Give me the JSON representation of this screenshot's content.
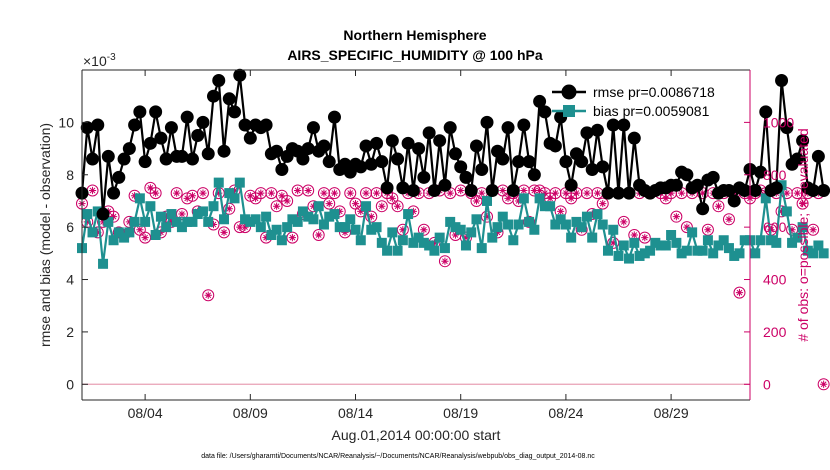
{
  "chart_data": {
    "type": "line",
    "title": "Northern Hemisphere",
    "subtitle": "AIRS_SPECIFIC_HUMIDITY @ 100 hPa",
    "xlabel": "Aug.01,2014 00:00:00 start",
    "ylabel_left": "rmse and bias (model - observation)",
    "ylabel_right": "# of obs: o=possible; ∗=evaluated",
    "y_exponent_label": "×10",
    "y_exponent_power": "-3",
    "footnote": "data file: /Users/gharamti/Documents/NCAR/Reanalysis/~/Documents/NCAR/Reanalysis/webpub/obs_diag_output_2014-08.nc",
    "xlim": [
      1,
      32.75
    ],
    "ylim": [
      -0.6,
      12.0
    ],
    "ylim_right": [
      -60,
      1200
    ],
    "x_ticks": [
      4,
      9,
      14,
      19,
      24,
      29
    ],
    "x_tick_labels": [
      "08/04",
      "08/09",
      "08/14",
      "08/19",
      "08/24",
      "08/29"
    ],
    "y_ticks": [
      0,
      2,
      4,
      6,
      8,
      10
    ],
    "y_tick_labels": [
      "0",
      "2",
      "4",
      "6",
      "8",
      "10"
    ],
    "y_ticks_right": [
      0,
      200,
      400,
      600,
      800,
      1000
    ],
    "y_tick_labels_right": [
      "0",
      "200",
      "400",
      "600",
      "800",
      "1000"
    ],
    "x_start": 1.0,
    "x_step": 0.25,
    "legend": {
      "location": "top-right",
      "entries": [
        "rmse pr=0.0086718",
        "bias pr=0.0059081"
      ]
    },
    "colors": {
      "rmse": "#000000",
      "bias": "#1e9090",
      "obs": "#cc0066",
      "zero_line": "#e8a0b4",
      "axis": "#262626",
      "right_axis": "#cc0066"
    },
    "series": [
      {
        "name": "rmse pr=0.0086718",
        "values": [
          7.3,
          9.8,
          8.6,
          9.9,
          6.5,
          8.7,
          7.3,
          7.9,
          8.6,
          9.0,
          9.9,
          10.4,
          8.5,
          9.2,
          10.4,
          9.4,
          8.6,
          9.8,
          8.7,
          8.7,
          10.2,
          8.6,
          9.5,
          10.0,
          8.8,
          11.0,
          11.6,
          8.9,
          10.9,
          10.4,
          11.8,
          9.9,
          9.4,
          9.9,
          9.8,
          9.9,
          8.8,
          8.9,
          8.2,
          8.7,
          9.0,
          8.9,
          8.6,
          9.0,
          9.8,
          8.9,
          9.1,
          8.5,
          10.2,
          8.2,
          8.4,
          8.1,
          8.4,
          8.3,
          9.1,
          8.4,
          9.2,
          8.5,
          7.5,
          9.3,
          8.6,
          7.5,
          9.2,
          7.4,
          9.0,
          7.9,
          9.6,
          7.4,
          9.3,
          7.6,
          9.8,
          8.8,
          8.3,
          7.9,
          7.4,
          9.1,
          8.2,
          10.0,
          7.4,
          8.9,
          8.6,
          9.8,
          7.4,
          8.5,
          9.9,
          8.5,
          8.0,
          10.8,
          10.4,
          9.2,
          9.1,
          10.2,
          8.5,
          7.6,
          8.8,
          8.5,
          9.6,
          8.2,
          9.7,
          8.3,
          7.3,
          9.9,
          7.3,
          9.9,
          7.3,
          9.4,
          7.6,
          7.4,
          7.3,
          7.4,
          7.5,
          7.5,
          7.6,
          7.6,
          8.1,
          8.0,
          7.5,
          7.6,
          6.7,
          7.8,
          7.9,
          7.3,
          7.4,
          7.4,
          7.0,
          7.5,
          7.4,
          8.2,
          7.4,
          8.1,
          10.4,
          7.4,
          7.5,
          11.6,
          9.8,
          8.4,
          8.6,
          9.3,
          7.5,
          7.4,
          8.7,
          7.4
        ],
        "marker": "filled-circle"
      },
      {
        "name": "bias pr=0.0059081",
        "values": [
          5.2,
          6.5,
          5.8,
          6.6,
          4.6,
          6.2,
          5.5,
          5.8,
          5.6,
          5.8,
          6.2,
          7.1,
          6.2,
          6.8,
          5.7,
          6.4,
          6.0,
          6.5,
          6.2,
          6.0,
          6.2,
          6.2,
          6.5,
          6.6,
          6.2,
          6.8,
          7.7,
          6.3,
          7.3,
          7.1,
          7.7,
          6.3,
          6.2,
          6.3,
          6.0,
          6.4,
          5.7,
          5.9,
          5.5,
          6.0,
          6.3,
          6.2,
          6.6,
          6.4,
          6.3,
          6.8,
          6.1,
          6.4,
          6.5,
          6.0,
          6.0,
          6.3,
          5.9,
          5.5,
          6.8,
          5.9,
          6.0,
          5.4,
          5.1,
          5.8,
          5.1,
          5.5,
          6.5,
          5.4,
          5.6,
          5.4,
          5.3,
          5.1,
          5.6,
          5.2,
          6.2,
          6.0,
          5.9,
          5.3,
          5.8,
          6.3,
          5.2,
          7.0,
          5.6,
          6.0,
          6.4,
          6.1,
          5.5,
          6.1,
          7.1,
          6.2,
          5.9,
          7.1,
          6.8,
          6.8,
          6.1,
          6.3,
          6.1,
          5.6,
          6.2,
          6.0,
          6.4,
          5.6,
          6.5,
          6.1,
          5.1,
          5.9,
          4.9,
          5.3,
          4.8,
          5.4,
          4.9,
          5.0,
          5.1,
          5.4,
          5.3,
          5.3,
          5.7,
          5.4,
          5.0,
          5.1,
          5.8,
          5.1,
          5.1,
          5.5,
          5.0,
          5.3,
          5.5,
          5.2,
          4.9,
          5.0,
          5.5,
          5.5,
          5.0,
          5.5,
          7.1,
          5.5,
          5.4,
          7.6,
          6.6,
          5.4,
          5.6,
          6.0,
          5.1,
          5.0,
          5.3,
          5.0
        ],
        "marker": "filled-square"
      },
      {
        "name": "# of obs possible",
        "axis": "right",
        "marker": "open-circle",
        "values": [
          690,
          620,
          740,
          580,
          620,
          660,
          640,
          580,
          570,
          620,
          720,
          590,
          560,
          750,
          730,
          580,
          640,
          620,
          730,
          650,
          710,
          720,
          660,
          730,
          340,
          610,
          730,
          580,
          670,
          740,
          600,
          600,
          720,
          710,
          730,
          560,
          730,
          680,
          720,
          700,
          560,
          740,
          650,
          740,
          680,
          570,
          730,
          690,
          730,
          660,
          580,
          730,
          690,
          660,
          730,
          640,
          730,
          680,
          730,
          710,
          680,
          590,
          730,
          660,
          730,
          590,
          730,
          540,
          740,
          470,
          730,
          570,
          740,
          560,
          730,
          700,
          730,
          640,
          740,
          580,
          740,
          710,
          730,
          700,
          740,
          620,
          740,
          740,
          730,
          710,
          730,
          660,
          730,
          710,
          730,
          590,
          730,
          650,
          730,
          690,
          730,
          540,
          730,
          620,
          730,
          570,
          730,
          560,
          730,
          740,
          730,
          710,
          730,
          640,
          730,
          600,
          730,
          760,
          730,
          590,
          730,
          680,
          730,
          630,
          730,
          350,
          730,
          710,
          730,
          740,
          730,
          590,
          730,
          660,
          730,
          590,
          730,
          690,
          730,
          590,
          730,
          0
        ]
      },
      {
        "name": "# of obs evaluated",
        "axis": "right",
        "marker": "asterisk",
        "values": [
          690,
          620,
          740,
          580,
          620,
          660,
          640,
          580,
          570,
          620,
          720,
          590,
          560,
          750,
          730,
          580,
          640,
          620,
          730,
          650,
          710,
          720,
          660,
          730,
          340,
          610,
          730,
          580,
          670,
          740,
          600,
          600,
          720,
          710,
          730,
          560,
          730,
          680,
          720,
          700,
          560,
          740,
          650,
          740,
          680,
          570,
          730,
          690,
          730,
          660,
          580,
          730,
          690,
          660,
          730,
          640,
          730,
          680,
          730,
          710,
          680,
          590,
          730,
          660,
          730,
          590,
          730,
          540,
          740,
          470,
          730,
          570,
          740,
          560,
          730,
          700,
          730,
          640,
          740,
          580,
          740,
          710,
          730,
          700,
          740,
          620,
          740,
          740,
          730,
          710,
          730,
          660,
          730,
          710,
          730,
          590,
          730,
          650,
          730,
          690,
          730,
          540,
          730,
          620,
          730,
          570,
          730,
          560,
          730,
          740,
          730,
          710,
          730,
          640,
          730,
          600,
          730,
          760,
          730,
          590,
          730,
          680,
          730,
          630,
          730,
          350,
          730,
          710,
          730,
          740,
          730,
          590,
          730,
          660,
          730,
          590,
          730,
          690,
          730,
          590,
          730,
          0
        ]
      }
    ]
  }
}
